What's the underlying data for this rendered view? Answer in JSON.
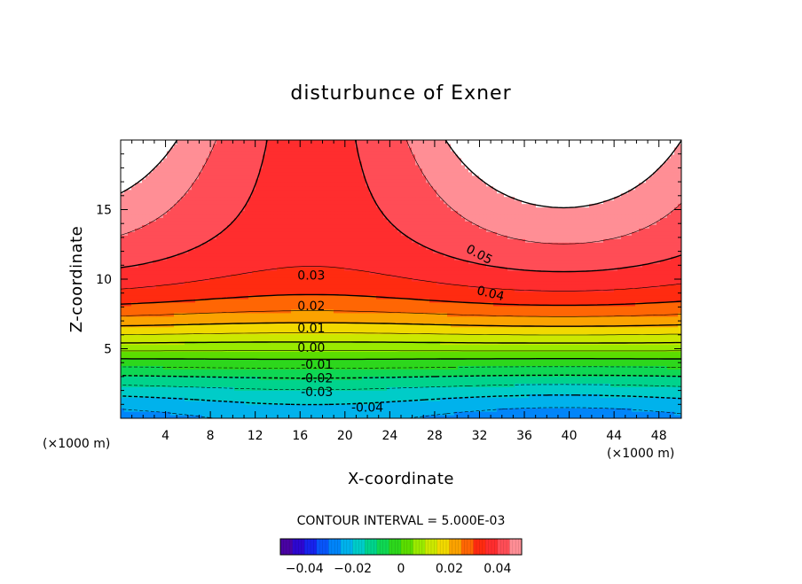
{
  "chart_data": {
    "type": "contour",
    "title": "disturbunce of Exner",
    "xlabel": "X-coordinate",
    "ylabel": "Z-coordinate",
    "x_unit_left": "(×1000 m)",
    "x_unit_right": "(×1000 m)",
    "xlim": [
      0,
      50
    ],
    "ylim": [
      0,
      20
    ],
    "x_ticks": [
      4,
      8,
      12,
      16,
      20,
      24,
      28,
      32,
      36,
      40,
      44,
      48
    ],
    "y_ticks": [
      5,
      10,
      15
    ],
    "contour_interval_text": "CONTOUR INTERVAL = 5.000E-03",
    "contour_interval": 0.005,
    "value_range": [
      -0.05,
      0.05
    ],
    "contour_labels": [
      {
        "text": "0.05",
        "value": 0.05,
        "x": 32,
        "y": 11.8
      },
      {
        "text": "0.04",
        "value": 0.04,
        "x": 33,
        "y": 9
      },
      {
        "text": "0.03",
        "value": 0.03,
        "x": 17,
        "y": 10.3
      },
      {
        "text": "0.02",
        "value": 0.02,
        "x": 17,
        "y": 8.1
      },
      {
        "text": "0.01",
        "value": 0.01,
        "x": 17,
        "y": 6.5
      },
      {
        "text": "0.00",
        "value": 0.0,
        "x": 17,
        "y": 5.1
      },
      {
        "text": "-0.01",
        "value": -0.01,
        "x": 17.5,
        "y": 3.9
      },
      {
        "text": "-0.02",
        "value": -0.02,
        "x": 17.5,
        "y": 2.9
      },
      {
        "text": "-0.03",
        "value": -0.03,
        "x": 17.5,
        "y": 1.9
      },
      {
        "text": "-0.04",
        "value": -0.04,
        "x": 22,
        "y": 0.8
      }
    ],
    "colorbar": {
      "ticks": [
        -0.04,
        -0.02,
        0,
        0.02,
        0.04
      ],
      "tick_labels": [
        "−0.04",
        "−0.02",
        "0",
        "0.02",
        "0.04"
      ]
    },
    "colors": {
      "undefined_region": "#ffffff",
      "positive_lines": "#000000",
      "negative_lines": "dashed"
    }
  }
}
